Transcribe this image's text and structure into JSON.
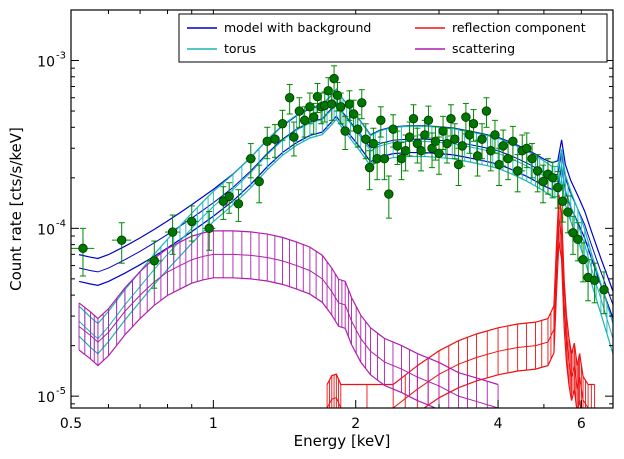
{
  "chart_data": {
    "type": "line",
    "title": "",
    "xlabel": "Energy [keV]",
    "ylabel": "Count rate [cts/s/keV]",
    "xscale": "log",
    "yscale": "log",
    "xlim": [
      0.5,
      7.0
    ],
    "ylim": [
      8.5e-06,
      0.002
    ],
    "grid": false,
    "legend_position": "top-right",
    "legend_columns": 2,
    "x_ticks": [
      {
        "value": 0.5,
        "label": "0.5"
      },
      {
        "value": 1,
        "label": "1"
      },
      {
        "value": 2,
        "label": "2"
      },
      {
        "value": 4,
        "label": "4"
      },
      {
        "value": 6,
        "label": "6"
      }
    ],
    "y_ticks": [
      {
        "value": 1e-05,
        "label": "10",
        "exp": "-5"
      },
      {
        "value": 0.0001,
        "label": "10",
        "exp": "-4"
      },
      {
        "value": 0.001,
        "label": "10",
        "exp": "-3"
      }
    ],
    "series": [
      {
        "name": "model with background",
        "color": "#0000cc",
        "band": "lines",
        "x": [
          0.52,
          0.55,
          0.57,
          0.6,
          0.65,
          0.7,
          0.75,
          0.8,
          0.85,
          0.9,
          0.95,
          1.0,
          1.1,
          1.2,
          1.3,
          1.4,
          1.5,
          1.6,
          1.7,
          1.78,
          1.82,
          1.88,
          1.95,
          2.05,
          2.15,
          2.25,
          2.4,
          2.6,
          2.8,
          3.0,
          3.2,
          3.4,
          3.6,
          3.8,
          4.0,
          4.2,
          4.4,
          4.6,
          4.8,
          5.0,
          5.2,
          5.35,
          5.45,
          5.55,
          5.7,
          5.9,
          6.1,
          6.3,
          6.6,
          7.0
        ],
        "y": [
          5.8e-05,
          5.6e-05,
          5.5e-05,
          5.8e-05,
          6.5e-05,
          7.3e-05,
          8.2e-05,
          9.2e-05,
          0.000103,
          0.000115,
          0.000128,
          0.000142,
          0.000175,
          0.00022,
          0.00028,
          0.00034,
          0.00039,
          0.00043,
          0.00045,
          0.00052,
          0.00056,
          0.00049,
          0.00043,
          0.00036,
          0.0003,
          0.00032,
          0.000335,
          0.00034,
          0.00034,
          0.000335,
          0.00033,
          0.00032,
          0.00031,
          0.0003,
          0.00029,
          0.000275,
          0.00026,
          0.000245,
          0.00023,
          0.000215,
          0.000205,
          0.00021,
          0.00028,
          0.0002,
          0.00016,
          0.00013,
          0.000105,
          8e-05,
          5.5e-05,
          3.5e-05
        ],
        "spread": 0.08
      },
      {
        "name": "torus",
        "color": "#19b5b5",
        "band": "hatch",
        "x": [
          0.52,
          0.55,
          0.57,
          0.6,
          0.65,
          0.7,
          0.75,
          0.8,
          0.85,
          0.9,
          0.95,
          1.0,
          1.1,
          1.2,
          1.3,
          1.4,
          1.5,
          1.6,
          1.7,
          1.78,
          1.82,
          1.88,
          1.95,
          2.05,
          2.15,
          2.25,
          2.4,
          2.6,
          2.8,
          3.0,
          3.2,
          3.4,
          3.6,
          3.8,
          4.0,
          4.2,
          4.4,
          4.6,
          4.8,
          5.0,
          5.2,
          5.35,
          5.45,
          5.55,
          5.7,
          5.9,
          6.1,
          6.3,
          6.6,
          7.0
        ],
        "y": [
          2.8e-05,
          2.4e-05,
          2.2e-05,
          2.6e-05,
          3.5e-05,
          4.5e-05,
          5.7e-05,
          7e-05,
          8.4e-05,
          0.0001,
          0.000117,
          0.000135,
          0.00017,
          0.000215,
          0.000275,
          0.000335,
          0.000385,
          0.000425,
          0.000445,
          0.00051,
          0.00055,
          0.00048,
          0.00042,
          0.00035,
          0.00029,
          0.00031,
          0.000325,
          0.00033,
          0.00033,
          0.000325,
          0.00032,
          0.00031,
          0.0003,
          0.00029,
          0.00028,
          0.000265,
          0.00025,
          0.000235,
          0.00022,
          0.000205,
          0.00019,
          0.00019,
          0.00024,
          0.00017,
          0.000135,
          0.000105,
          8e-05,
          5.8e-05,
          3.8e-05,
          2.2e-05
        ],
        "spread": 0.09
      },
      {
        "name": "reflection component",
        "color": "#ee1111",
        "band": "hatch",
        "x": [
          1.74,
          1.78,
          1.82,
          1.86,
          2.4,
          2.7,
          3.0,
          3.3,
          3.6,
          4.0,
          4.4,
          4.8,
          5.1,
          5.25,
          5.32,
          5.38,
          5.45,
          5.52,
          5.58,
          5.65,
          5.72,
          5.8,
          5.88,
          5.95,
          6.05,
          6.2,
          6.4
        ],
        "y": [
          8.5e-06,
          9.6e-06,
          9.8e-06,
          8.5e-06,
          8.5e-06,
          1.1e-05,
          1.35e-05,
          1.55e-05,
          1.7e-05,
          1.85e-05,
          1.95e-05,
          2e-05,
          2.1e-05,
          2.5e-05,
          6e-05,
          0.000115,
          9e-05,
          3.5e-05,
          2.2e-05,
          1.6e-05,
          1.3e-05,
          1.5e-05,
          1.1e-05,
          1.3e-05,
          9.5e-06,
          8.5e-06,
          8.5e-06
        ],
        "spread": 0.14
      },
      {
        "name": "scattering",
        "color": "#b01cb0",
        "band": "hatch",
        "x": [
          0.52,
          0.55,
          0.57,
          0.6,
          0.65,
          0.7,
          0.75,
          0.8,
          0.85,
          0.9,
          0.95,
          1.0,
          1.1,
          1.2,
          1.3,
          1.4,
          1.5,
          1.6,
          1.7,
          1.78,
          1.84,
          1.9,
          1.96,
          2.05,
          2.15,
          2.3,
          2.5,
          2.7,
          3.0,
          3.3,
          3.6,
          4.0
        ],
        "y": [
          2.6e-05,
          2.3e-05,
          2.1e-05,
          2.4e-05,
          3.2e-05,
          4e-05,
          4.8e-05,
          5.5e-05,
          6e-05,
          6.5e-05,
          6.8e-05,
          7e-05,
          7e-05,
          6.9e-05,
          6.7e-05,
          6.4e-05,
          6e-05,
          5.6e-05,
          5e-05,
          4.2e-05,
          3.6e-05,
          3.5e-05,
          2.8e-05,
          2.2e-05,
          1.85e-05,
          1.6e-05,
          1.45e-05,
          1.3e-05,
          1.15e-05,
          1e-05,
          9.3e-06,
          8.5e-06
        ],
        "spread": 0.14
      },
      {
        "name": "",
        "kind": "data",
        "color": "#007700",
        "errcolor": "#008800",
        "x": [
          0.53,
          0.64,
          0.75,
          0.82,
          0.9,
          0.98,
          1.05,
          1.08,
          1.13,
          1.2,
          1.25,
          1.3,
          1.35,
          1.4,
          1.45,
          1.48,
          1.52,
          1.56,
          1.6,
          1.63,
          1.66,
          1.69,
          1.72,
          1.75,
          1.78,
          1.8,
          1.83,
          1.86,
          1.9,
          1.94,
          1.98,
          2.02,
          2.06,
          2.1,
          2.14,
          2.18,
          2.22,
          2.26,
          2.3,
          2.35,
          2.4,
          2.45,
          2.5,
          2.55,
          2.6,
          2.65,
          2.7,
          2.75,
          2.8,
          2.85,
          2.9,
          2.95,
          3.0,
          3.06,
          3.12,
          3.18,
          3.24,
          3.3,
          3.36,
          3.42,
          3.48,
          3.55,
          3.62,
          3.7,
          3.78,
          3.86,
          3.94,
          4.02,
          4.1,
          4.2,
          4.3,
          4.4,
          4.5,
          4.6,
          4.72,
          4.85,
          4.98,
          5.1,
          5.22,
          5.35,
          5.48,
          5.62,
          5.76,
          5.9,
          6.05,
          6.2,
          6.4,
          6.7
        ],
        "y": [
          7.6e-05,
          8.5e-05,
          6.4e-05,
          9.5e-05,
          0.00011,
          0.0001,
          0.000145,
          0.000155,
          0.00014,
          0.00026,
          0.00019,
          0.00033,
          0.00034,
          0.00042,
          0.0006,
          0.00035,
          0.0005,
          0.00044,
          0.00053,
          0.00046,
          0.00061,
          0.00053,
          0.00054,
          0.00066,
          0.00055,
          0.00078,
          0.00062,
          0.00053,
          0.00038,
          0.00055,
          0.00048,
          0.00039,
          0.00056,
          0.00034,
          0.00023,
          0.00032,
          0.00026,
          0.00044,
          0.00026,
          0.00016,
          0.00039,
          0.00031,
          0.00026,
          0.00029,
          0.00035,
          0.00045,
          0.00032,
          0.00029,
          0.00036,
          0.00044,
          0.0003,
          0.00033,
          0.00028,
          0.00038,
          0.00032,
          0.00045,
          0.00034,
          0.00024,
          0.00031,
          0.00046,
          0.00036,
          0.00042,
          0.00027,
          0.00034,
          0.0005,
          0.00029,
          0.00036,
          0.00024,
          0.00031,
          0.00026,
          0.00033,
          0.00022,
          0.00029,
          0.0003,
          0.00026,
          0.00022,
          0.00019,
          0.00021,
          0.0002,
          0.000175,
          0.000145,
          0.000125,
          9.4e-05,
          8.6e-05,
          6.5e-05,
          5.1e-05,
          4.9e-05,
          4.3e-05
        ],
        "yerr": [
          2.4e-05,
          2.3e-05,
          2e-05,
          2.5e-05,
          2.6e-05,
          2.6e-05,
          3.2e-05,
          3.2e-05,
          3e-05,
          6e-05,
          4.8e-05,
          7e-05,
          7.5e-05,
          8.5e-05,
          0.00012,
          8e-05,
          0.0001,
          9e-05,
          0.00011,
          9.5e-05,
          0.00012,
          0.00011,
          0.00011,
          0.00013,
          0.00011,
          0.00015,
          0.00012,
          0.00011,
          8.5e-05,
          0.00011,
          0.0001,
          8.5e-05,
          0.00011,
          8e-05,
          6e-05,
          7.5e-05,
          6.5e-05,
          9e-05,
          6.5e-05,
          4.5e-05,
          8.5e-05,
          7e-05,
          6.5e-05,
          7e-05,
          8e-05,
          9.5e-05,
          7.5e-05,
          7e-05,
          8e-05,
          9.5e-05,
          7e-05,
          7.5e-05,
          7e-05,
          8.5e-05,
          7.5e-05,
          9.5e-05,
          8e-05,
          6e-05,
          7.5e-05,
          9.5e-05,
          8e-05,
          9e-05,
          6.5e-05,
          8e-05,
          0.0001,
          7e-05,
          8e-05,
          6e-05,
          7.5e-05,
          6.5e-05,
          7.5e-05,
          5.5e-05,
          7e-05,
          7e-05,
          6e-05,
          5.5e-05,
          4.8e-05,
          5e-05,
          4.8e-05,
          4.3e-05,
          3.6e-05,
          3.1e-05,
          2.4e-05,
          2.2e-05,
          1.7e-05,
          1.4e-05,
          1.3e-05,
          1.2e-05
        ],
        "xerr": [
          0.03,
          0.03,
          0.03,
          0.03,
          0.03,
          0.03,
          0.025,
          0.025,
          0.025,
          0.03,
          0.025,
          0.025,
          0.025,
          0.025,
          0.025,
          0.02,
          0.02,
          0.02,
          0.02,
          0.015,
          0.015,
          0.015,
          0.015,
          0.015,
          0.015,
          0.012,
          0.015,
          0.015,
          0.02,
          0.02,
          0.02,
          0.02,
          0.02,
          0.02,
          0.02,
          0.02,
          0.02,
          0.02,
          0.02,
          0.025,
          0.025,
          0.025,
          0.025,
          0.025,
          0.025,
          0.025,
          0.025,
          0.025,
          0.025,
          0.025,
          0.025,
          0.025,
          0.03,
          0.03,
          0.03,
          0.03,
          0.03,
          0.03,
          0.03,
          0.03,
          0.03,
          0.035,
          0.035,
          0.04,
          0.04,
          0.04,
          0.04,
          0.04,
          0.04,
          0.05,
          0.05,
          0.05,
          0.05,
          0.05,
          0.06,
          0.06,
          0.06,
          0.06,
          0.06,
          0.06,
          0.06,
          0.07,
          0.07,
          0.07,
          0.07,
          0.08,
          0.1,
          0.15
        ]
      }
    ]
  }
}
